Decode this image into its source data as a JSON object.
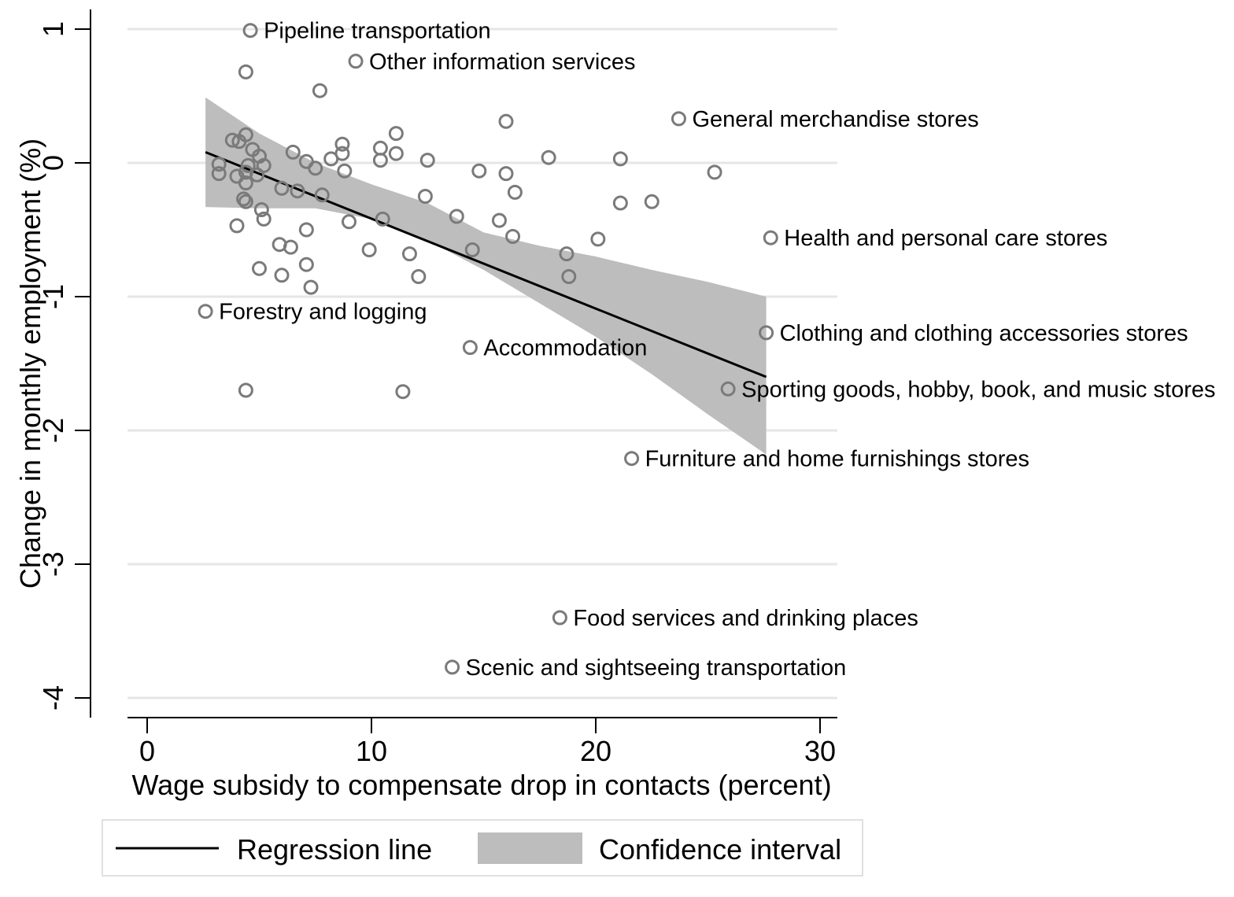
{
  "chart_data": {
    "type": "scatter",
    "title": "",
    "xlabel": "Wage subsidy to compensate drop in contacts (percent)",
    "ylabel": "Change in monthly employment (%)",
    "xlim": [
      -0.9,
      30.8
    ],
    "ylim": [
      -4.15,
      1.15
    ],
    "xticks": [
      0,
      10,
      20,
      30
    ],
    "yticks": [
      1,
      0,
      -1,
      -2,
      -3,
      -4
    ],
    "grid": "horizontal",
    "colors": {
      "points": "#7a7a7a",
      "line": "#000000",
      "band": "#bdbdbd",
      "grid": "#e6e6e6"
    },
    "legend": {
      "position": "bottom",
      "items": [
        "Regression line",
        "Confidence interval"
      ]
    },
    "regression_line": {
      "x": [
        2.6,
        27.6
      ],
      "y": [
        0.08,
        -1.6
      ]
    },
    "confidence_interval": {
      "x": [
        2.6,
        5,
        7.5,
        10,
        12.5,
        15,
        17.5,
        20,
        22.5,
        25,
        27.6
      ],
      "lower": [
        -0.33,
        -0.34,
        -0.34,
        -0.42,
        -0.58,
        -0.8,
        -1.05,
        -1.3,
        -1.58,
        -1.88,
        -2.18
      ],
      "upper": [
        0.49,
        0.22,
        0.0,
        -0.16,
        -0.3,
        -0.52,
        -0.62,
        -0.7,
        -0.8,
        -0.89,
        -1.0
      ]
    },
    "points": [
      {
        "x": 4.6,
        "y": 0.99,
        "label": "Pipeline transportation"
      },
      {
        "x": 9.3,
        "y": 0.76,
        "label": "Other information services"
      },
      {
        "x": 23.7,
        "y": 0.33,
        "label": "General merchandise stores"
      },
      {
        "x": 27.8,
        "y": -0.56,
        "label": "Health and personal care stores"
      },
      {
        "x": 2.6,
        "y": -1.11,
        "label": "Forestry and logging"
      },
      {
        "x": 14.4,
        "y": -1.38,
        "label": "Accommodation"
      },
      {
        "x": 27.6,
        "y": -1.27,
        "label": "Clothing and clothing accessories stores"
      },
      {
        "x": 25.9,
        "y": -1.69,
        "label": "Sporting goods, hobby, book, and music stores"
      },
      {
        "x": 21.6,
        "y": -2.21,
        "label": "Furniture and home furnishings stores"
      },
      {
        "x": 18.4,
        "y": -3.4,
        "label": "Food services and drinking places"
      },
      {
        "x": 13.6,
        "y": -3.77,
        "label": "Scenic and sightseeing transportation"
      },
      {
        "x": 4.4,
        "y": 0.68,
        "label": ""
      },
      {
        "x": 7.7,
        "y": 0.54,
        "label": ""
      },
      {
        "x": 16.0,
        "y": 0.31,
        "label": ""
      },
      {
        "x": 11.1,
        "y": 0.22,
        "label": ""
      },
      {
        "x": 4.4,
        "y": 0.21,
        "label": ""
      },
      {
        "x": 3.8,
        "y": 0.17,
        "label": ""
      },
      {
        "x": 4.1,
        "y": 0.16,
        "label": ""
      },
      {
        "x": 8.7,
        "y": 0.14,
        "label": ""
      },
      {
        "x": 10.4,
        "y": 0.11,
        "label": ""
      },
      {
        "x": 4.7,
        "y": 0.1,
        "label": ""
      },
      {
        "x": 6.5,
        "y": 0.08,
        "label": ""
      },
      {
        "x": 11.1,
        "y": 0.07,
        "label": ""
      },
      {
        "x": 8.7,
        "y": 0.07,
        "label": ""
      },
      {
        "x": 5.0,
        "y": 0.05,
        "label": ""
      },
      {
        "x": 17.9,
        "y": 0.04,
        "label": ""
      },
      {
        "x": 8.2,
        "y": 0.03,
        "label": ""
      },
      {
        "x": 21.1,
        "y": 0.03,
        "label": ""
      },
      {
        "x": 12.5,
        "y": 0.02,
        "label": ""
      },
      {
        "x": 10.4,
        "y": 0.02,
        "label": ""
      },
      {
        "x": 7.1,
        "y": 0.01,
        "label": ""
      },
      {
        "x": 3.2,
        "y": -0.01,
        "label": ""
      },
      {
        "x": 5.2,
        "y": -0.02,
        "label": ""
      },
      {
        "x": 4.5,
        "y": -0.02,
        "label": ""
      },
      {
        "x": 7.5,
        "y": -0.04,
        "label": ""
      },
      {
        "x": 14.8,
        "y": -0.06,
        "label": ""
      },
      {
        "x": 8.8,
        "y": -0.06,
        "label": ""
      },
      {
        "x": 4.4,
        "y": -0.07,
        "label": ""
      },
      {
        "x": 25.3,
        "y": -0.07,
        "label": ""
      },
      {
        "x": 3.2,
        "y": -0.08,
        "label": ""
      },
      {
        "x": 16.0,
        "y": -0.08,
        "label": ""
      },
      {
        "x": 4.9,
        "y": -0.09,
        "label": ""
      },
      {
        "x": 4.0,
        "y": -0.1,
        "label": ""
      },
      {
        "x": 4.4,
        "y": -0.15,
        "label": ""
      },
      {
        "x": 6.0,
        "y": -0.19,
        "label": ""
      },
      {
        "x": 6.7,
        "y": -0.21,
        "label": ""
      },
      {
        "x": 16.4,
        "y": -0.22,
        "label": ""
      },
      {
        "x": 7.8,
        "y": -0.24,
        "label": ""
      },
      {
        "x": 12.4,
        "y": -0.25,
        "label": ""
      },
      {
        "x": 4.3,
        "y": -0.27,
        "label": ""
      },
      {
        "x": 4.4,
        "y": -0.29,
        "label": ""
      },
      {
        "x": 21.1,
        "y": -0.3,
        "label": ""
      },
      {
        "x": 22.5,
        "y": -0.29,
        "label": ""
      },
      {
        "x": 5.1,
        "y": -0.35,
        "label": ""
      },
      {
        "x": 13.8,
        "y": -0.4,
        "label": ""
      },
      {
        "x": 10.5,
        "y": -0.42,
        "label": ""
      },
      {
        "x": 15.7,
        "y": -0.43,
        "label": ""
      },
      {
        "x": 5.2,
        "y": -0.42,
        "label": ""
      },
      {
        "x": 9.0,
        "y": -0.44,
        "label": ""
      },
      {
        "x": 4.0,
        "y": -0.47,
        "label": ""
      },
      {
        "x": 7.1,
        "y": -0.5,
        "label": ""
      },
      {
        "x": 16.3,
        "y": -0.55,
        "label": ""
      },
      {
        "x": 20.1,
        "y": -0.57,
        "label": ""
      },
      {
        "x": 5.9,
        "y": -0.61,
        "label": ""
      },
      {
        "x": 6.4,
        "y": -0.63,
        "label": ""
      },
      {
        "x": 9.9,
        "y": -0.65,
        "label": ""
      },
      {
        "x": 14.5,
        "y": -0.65,
        "label": ""
      },
      {
        "x": 11.7,
        "y": -0.68,
        "label": ""
      },
      {
        "x": 18.7,
        "y": -0.68,
        "label": ""
      },
      {
        "x": 7.1,
        "y": -0.76,
        "label": ""
      },
      {
        "x": 5.0,
        "y": -0.79,
        "label": ""
      },
      {
        "x": 6.0,
        "y": -0.84,
        "label": ""
      },
      {
        "x": 12.1,
        "y": -0.85,
        "label": ""
      },
      {
        "x": 18.8,
        "y": -0.85,
        "label": ""
      },
      {
        "x": 7.3,
        "y": -0.93,
        "label": ""
      },
      {
        "x": 4.4,
        "y": -1.7,
        "label": ""
      },
      {
        "x": 11.4,
        "y": -1.71,
        "label": ""
      }
    ]
  }
}
